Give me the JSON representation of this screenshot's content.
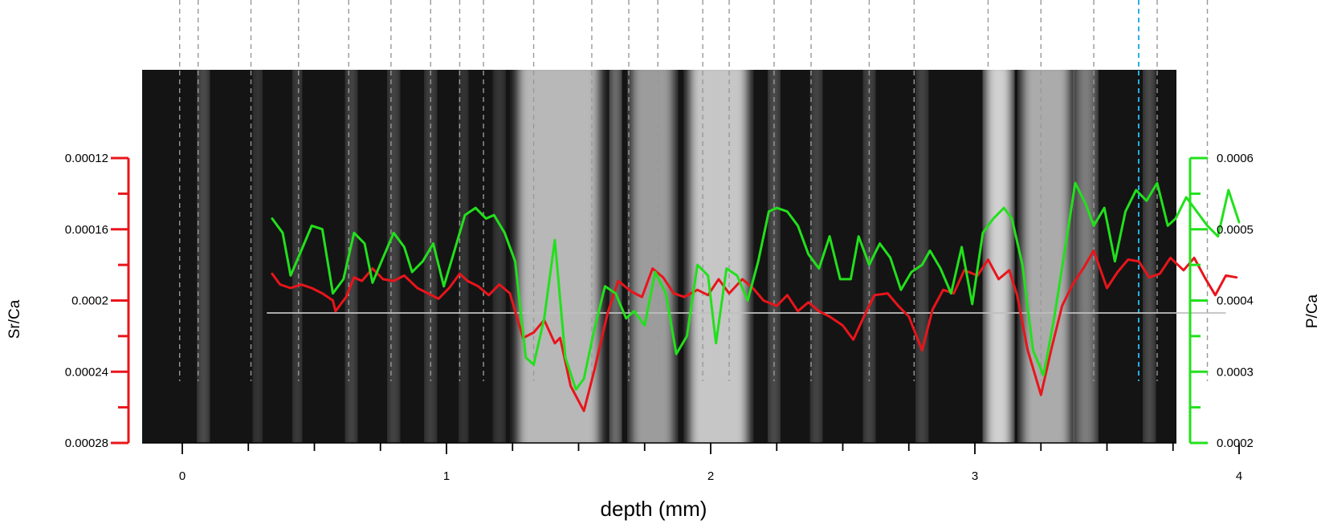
{
  "chart_data": {
    "type": "line",
    "xlabel": "depth (mm)",
    "x_ticks": [
      "0",
      "1",
      "2",
      "3",
      "4"
    ],
    "x_tick_values": [
      0,
      1,
      2,
      3,
      4
    ],
    "xlim": [
      -0.15,
      4.0
    ],
    "background": "grayscale microscope image of growth bands",
    "y_left": {
      "label": "Sr/Ca",
      "ticks": [
        "0.00012",
        "0.00016",
        "0.0002",
        "0.00024",
        "0.00028"
      ],
      "tick_values": [
        0.00012,
        0.00016,
        0.0002,
        0.00024,
        0.00028
      ],
      "ylim": [
        0.00012,
        0.00028
      ],
      "inverted": true,
      "color": "#e8151b"
    },
    "y_right": {
      "label": "P/Ca",
      "ticks": [
        "0.0006",
        "0.0005",
        "0.0004",
        "0.0003",
        "0.0002"
      ],
      "tick_values": [
        0.0006,
        0.0005,
        0.0004,
        0.0003,
        0.0002
      ],
      "ylim": [
        0.0002,
        0.0006
      ],
      "color": "#22e01c"
    },
    "reference_line": {
      "axis": "left",
      "y": 0.000207,
      "color": "#bfbfbf"
    },
    "band_markers_mm": [
      -0.01,
      0.06,
      0.26,
      0.44,
      0.63,
      0.79,
      0.94,
      1.05,
      1.14,
      1.33,
      1.55,
      1.69,
      1.8,
      1.97,
      2.07,
      2.24,
      2.38,
      2.6,
      2.77,
      3.05,
      3.25,
      3.45,
      3.69,
      3.88
    ],
    "highlight_marker_mm": 3.62,
    "highlight_color": "#2aaee0",
    "series": [
      {
        "axis": "left",
        "color": "#e8151b",
        "x": [
          0.34,
          0.37,
          0.41,
          0.45,
          0.49,
          0.53,
          0.57,
          0.58,
          0.62,
          0.65,
          0.68,
          0.72,
          0.76,
          0.8,
          0.84,
          0.89,
          0.93,
          0.97,
          1.01,
          1.05,
          1.08,
          1.12,
          1.16,
          1.2,
          1.24,
          1.26,
          1.29,
          1.33,
          1.37,
          1.41,
          1.43,
          1.47,
          1.52,
          1.56,
          1.61,
          1.65,
          1.7,
          1.74,
          1.78,
          1.82,
          1.86,
          1.9,
          1.95,
          1.99,
          2.03,
          2.07,
          2.12,
          2.16,
          2.2,
          2.25,
          2.29,
          2.33,
          2.37,
          2.41,
          2.45,
          2.5,
          2.54,
          2.58,
          2.62,
          2.67,
          2.71,
          2.75,
          2.8,
          2.84,
          2.88,
          2.92,
          2.96,
          3.01,
          3.05,
          3.09,
          3.13,
          3.16,
          3.2,
          3.25,
          3.29,
          3.33,
          3.37,
          3.41,
          3.45,
          3.5,
          3.54,
          3.58,
          3.62,
          3.66,
          3.7,
          3.74,
          3.79,
          3.83,
          3.87,
          3.91,
          3.95,
          3.99
        ],
        "y": [
          0.000185,
          0.000191,
          0.000193,
          0.000191,
          0.000193,
          0.000196,
          0.0002,
          0.000206,
          0.000198,
          0.000187,
          0.000189,
          0.000182,
          0.000188,
          0.000189,
          0.000186,
          0.000193,
          0.000196,
          0.000199,
          0.000193,
          0.000185,
          0.000189,
          0.000192,
          0.000197,
          0.000191,
          0.000196,
          0.000206,
          0.000221,
          0.000218,
          0.000211,
          0.000224,
          0.000221,
          0.000248,
          0.000262,
          0.000239,
          0.000207,
          0.000189,
          0.000195,
          0.000198,
          0.000182,
          0.000187,
          0.000196,
          0.000198,
          0.000194,
          0.000197,
          0.000188,
          0.000196,
          0.000188,
          0.000193,
          0.0002,
          0.000203,
          0.000197,
          0.000206,
          0.000201,
          0.000206,
          0.000209,
          0.000214,
          0.000222,
          0.000209,
          0.000197,
          0.000196,
          0.000203,
          0.000209,
          0.000228,
          0.000205,
          0.000194,
          0.000196,
          0.000183,
          0.000186,
          0.000177,
          0.000188,
          0.000183,
          0.000197,
          0.000228,
          0.000253,
          0.000227,
          0.000203,
          0.000191,
          0.000182,
          0.000172,
          0.000193,
          0.000184,
          0.000177,
          0.000178,
          0.000187,
          0.000185,
          0.000176,
          0.000183,
          0.000176,
          0.000187,
          0.000197,
          0.000186,
          0.000187
        ]
      },
      {
        "axis": "right",
        "color": "#22e01c",
        "x": [
          0.34,
          0.38,
          0.41,
          0.45,
          0.49,
          0.53,
          0.57,
          0.61,
          0.65,
          0.69,
          0.72,
          0.76,
          0.8,
          0.84,
          0.87,
          0.91,
          0.95,
          0.99,
          1.03,
          1.07,
          1.11,
          1.15,
          1.18,
          1.22,
          1.26,
          1.3,
          1.33,
          1.37,
          1.41,
          1.45,
          1.49,
          1.52,
          1.56,
          1.6,
          1.64,
          1.68,
          1.71,
          1.75,
          1.79,
          1.83,
          1.87,
          1.91,
          1.95,
          1.99,
          2.02,
          2.06,
          2.1,
          2.14,
          2.18,
          2.22,
          2.25,
          2.29,
          2.33,
          2.37,
          2.41,
          2.45,
          2.49,
          2.53,
          2.56,
          2.6,
          2.64,
          2.68,
          2.72,
          2.76,
          2.8,
          2.83,
          2.87,
          2.91,
          2.95,
          2.99,
          3.03,
          3.07,
          3.11,
          3.14,
          3.18,
          3.22,
          3.26,
          3.3,
          3.34,
          3.38,
          3.42,
          3.45,
          3.49,
          3.53,
          3.57,
          3.61,
          3.65,
          3.69,
          3.73,
          3.76,
          3.8,
          3.84,
          3.88,
          3.92,
          3.96,
          4.0
        ],
        "y": [
          0.000515,
          0.000495,
          0.000435,
          0.00047,
          0.000505,
          0.0005,
          0.00041,
          0.00043,
          0.000495,
          0.00048,
          0.000425,
          0.00046,
          0.000495,
          0.000475,
          0.00044,
          0.000455,
          0.00048,
          0.00042,
          0.00047,
          0.00052,
          0.00053,
          0.000515,
          0.00052,
          0.000495,
          0.000455,
          0.00032,
          0.00031,
          0.000375,
          0.000485,
          0.00032,
          0.000275,
          0.00029,
          0.00036,
          0.00042,
          0.00041,
          0.000375,
          0.000385,
          0.000365,
          0.00044,
          0.00041,
          0.000325,
          0.00035,
          0.00045,
          0.000435,
          0.00034,
          0.000445,
          0.000435,
          0.0004,
          0.000455,
          0.000525,
          0.00053,
          0.000525,
          0.000505,
          0.000465,
          0.000445,
          0.00049,
          0.00043,
          0.00043,
          0.00049,
          0.00045,
          0.00048,
          0.00046,
          0.000415,
          0.00044,
          0.00045,
          0.00047,
          0.000445,
          0.00041,
          0.000475,
          0.000395,
          0.000495,
          0.000515,
          0.00053,
          0.000515,
          0.00045,
          0.00033,
          0.000295,
          0.000375,
          0.00047,
          0.000565,
          0.000535,
          0.000505,
          0.00053,
          0.000455,
          0.000525,
          0.000555,
          0.00054,
          0.000565,
          0.000505,
          0.000515,
          0.000545,
          0.000525,
          0.000505,
          0.00049,
          0.000555,
          0.00051
        ]
      }
    ]
  }
}
